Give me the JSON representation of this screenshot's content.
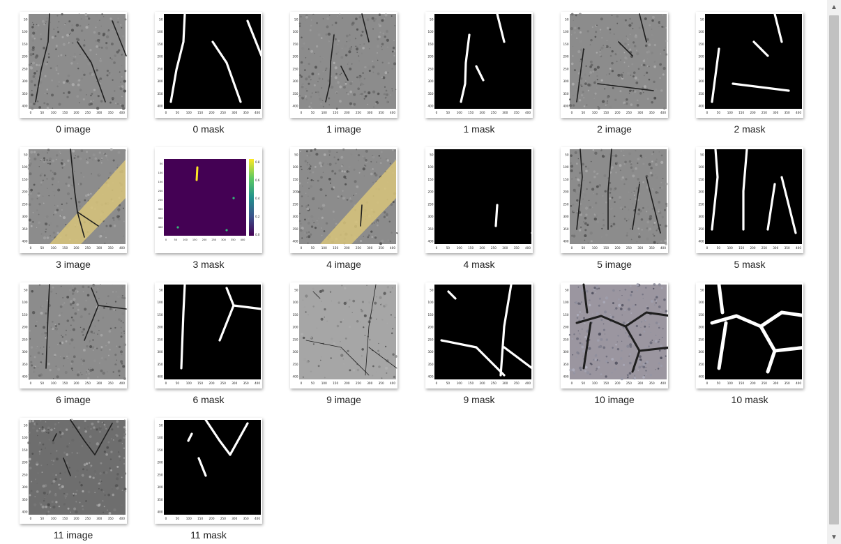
{
  "gallery": {
    "items": [
      {
        "caption": "0 image"
      },
      {
        "caption": "0 mask"
      },
      {
        "caption": "1 image"
      },
      {
        "caption": "1 mask"
      },
      {
        "caption": "2 image"
      },
      {
        "caption": "2 mask"
      },
      {
        "caption": "3 image"
      },
      {
        "caption": "3 mask"
      },
      {
        "caption": "4 image"
      },
      {
        "caption": "4 mask"
      },
      {
        "caption": "5 image"
      },
      {
        "caption": "5 mask"
      },
      {
        "caption": "6 image"
      },
      {
        "caption": "6 mask"
      },
      {
        "caption": "9 image"
      },
      {
        "caption": "9 mask"
      },
      {
        "caption": "10 image"
      },
      {
        "caption": "10 mask"
      },
      {
        "caption": "11 image"
      },
      {
        "caption": "11 mask"
      }
    ]
  },
  "axes": {
    "x_ticks": [
      "0",
      "50",
      "100",
      "150",
      "200",
      "250",
      "300",
      "350",
      "400"
    ],
    "y_ticks": [
      "50",
      "100",
      "150",
      "200",
      "250",
      "300",
      "350",
      "400"
    ],
    "colorbar_ticks": [
      "0.8",
      "0.6",
      "0.4",
      "0.2",
      "0.0"
    ]
  },
  "scrollbar": {
    "up_icon": "▲",
    "down_icon": "▼"
  },
  "colors": {
    "asphalt": "#8c8c8c",
    "mask_bg": "#000000",
    "mask_crack": "#ffffff",
    "viridis_low": "#440154",
    "viridis_high": "#fde725",
    "road_paint": "#d8c47a"
  }
}
